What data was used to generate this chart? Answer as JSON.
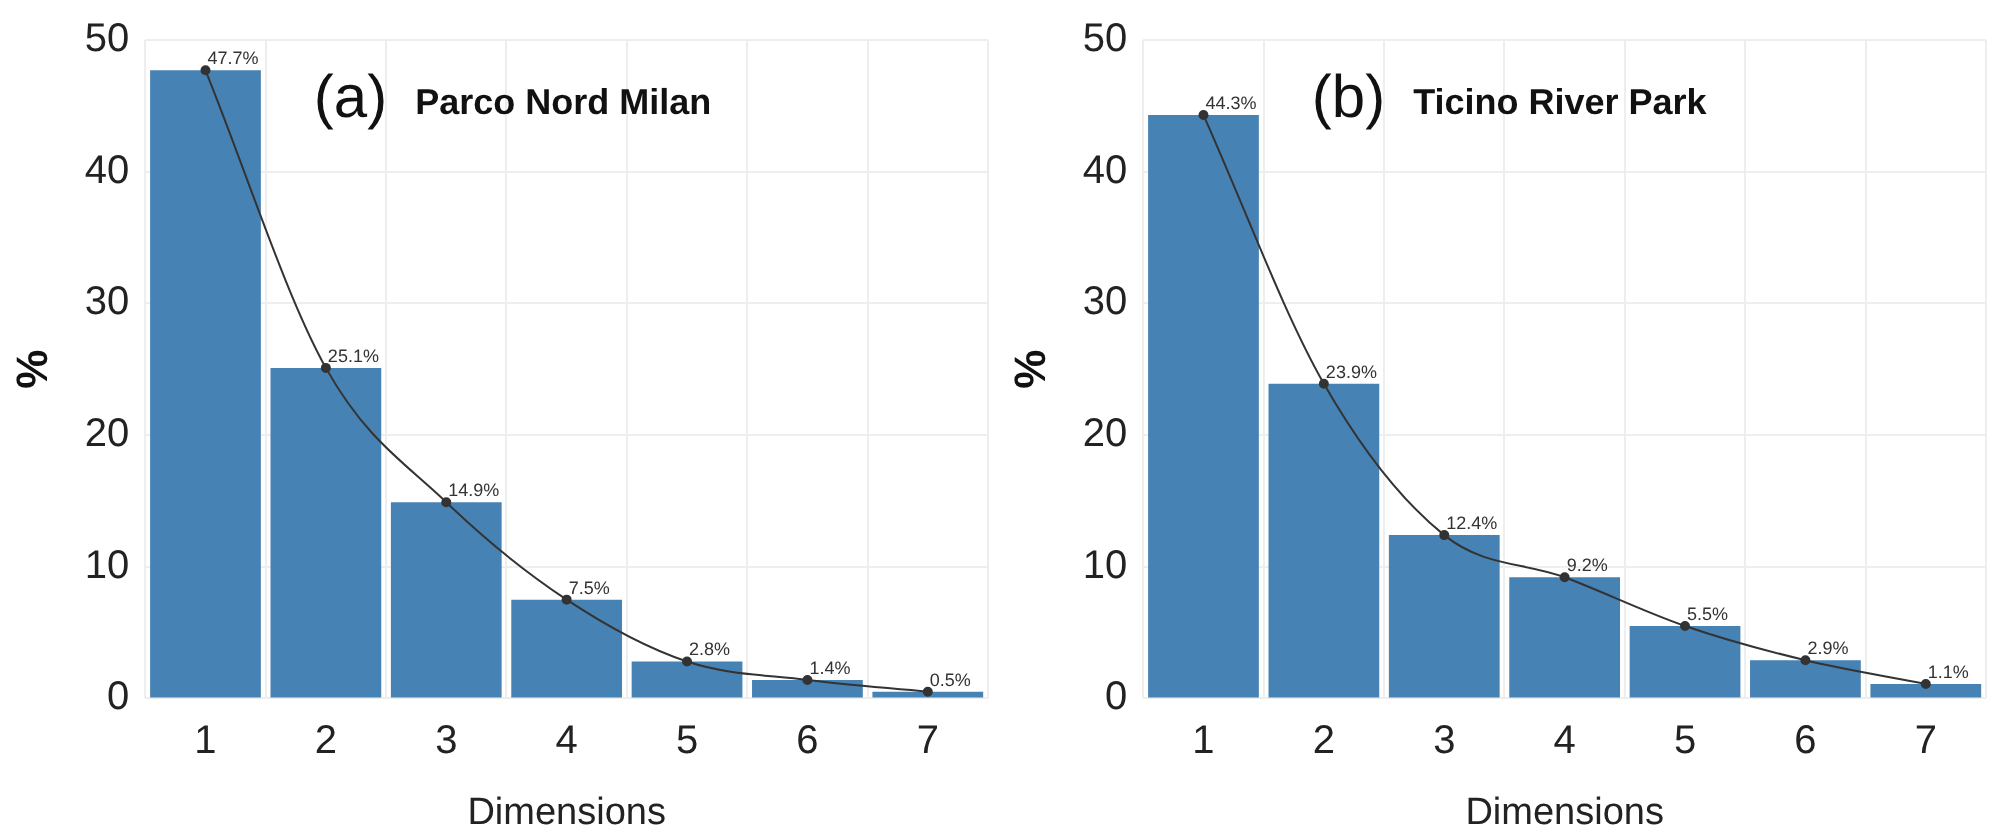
{
  "chart_data": [
    {
      "type": "bar",
      "title": "(a)  Parco Nord Milan",
      "xlabel": "Dimensions",
      "ylabel": "%",
      "categories": [
        "1",
        "2",
        "3",
        "4",
        "5",
        "6",
        "7"
      ],
      "series": [
        {
          "color": "#4682b4",
          "values": [
            47.7,
            25.1,
            14.9,
            7.5,
            2.8,
            1.4,
            0.5
          ]
        },
        {
          "type": "line",
          "color": "#333333",
          "marker": "circle",
          "values": [
            47.7,
            25.1,
            14.9,
            7.5,
            2.8,
            1.4,
            0.5
          ],
          "value_labels": [
            "47.7%",
            "25.1%",
            "14.9%",
            "7.5%",
            "2.8%",
            "1.4%",
            "0.5%"
          ]
        }
      ],
      "ylim": [
        0,
        50
      ],
      "yticks": [
        0,
        10,
        20,
        30,
        40,
        50
      ],
      "grid": true,
      "legend": false
    },
    {
      "type": "bar",
      "title": "(b)  Ticino River Park",
      "xlabel": "Dimensions",
      "ylabel": "%",
      "categories": [
        "1",
        "2",
        "3",
        "4",
        "5",
        "6",
        "7"
      ],
      "series": [
        {
          "color": "#4682b4",
          "values": [
            44.3,
            23.9,
            12.4,
            9.2,
            5.5,
            2.9,
            1.1
          ]
        },
        {
          "type": "line",
          "color": "#333333",
          "marker": "circle",
          "values": [
            44.3,
            23.9,
            12.4,
            9.2,
            5.5,
            2.9,
            1.1
          ],
          "value_labels": [
            "44.3%",
            "23.9%",
            "12.4%",
            "9.2%",
            "5.5%",
            "2.9%",
            "1.1%"
          ]
        }
      ],
      "ylim": [
        0,
        50
      ],
      "yticks": [
        0,
        10,
        20,
        30,
        40,
        50
      ],
      "grid": true,
      "legend": false
    }
  ]
}
